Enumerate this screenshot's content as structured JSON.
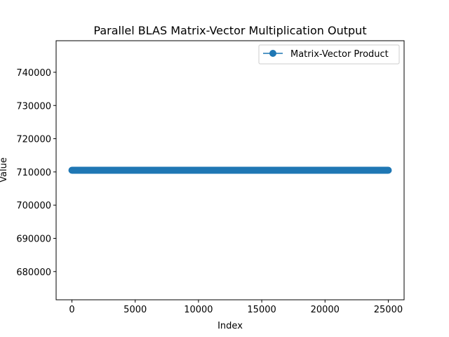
{
  "chart_data": {
    "type": "line",
    "title": "Parallel BLAS Matrix-Vector Multiplication Output",
    "xlabel": "Index",
    "ylabel": "Value",
    "xlim": [
      -1250,
      26250
    ],
    "ylim": [
      671500,
      749500
    ],
    "x_ticks": [
      0,
      5000,
      10000,
      15000,
      20000,
      25000
    ],
    "y_ticks": [
      680000,
      690000,
      700000,
      710000,
      720000,
      730000,
      740000
    ],
    "grid": false,
    "legend_position": "upper-right",
    "series": [
      {
        "name": "Matrix-Vector Product",
        "color": "#1f77b4",
        "marker": "circle",
        "x_start": 0,
        "x_end": 25000,
        "value": 710500
      }
    ]
  }
}
